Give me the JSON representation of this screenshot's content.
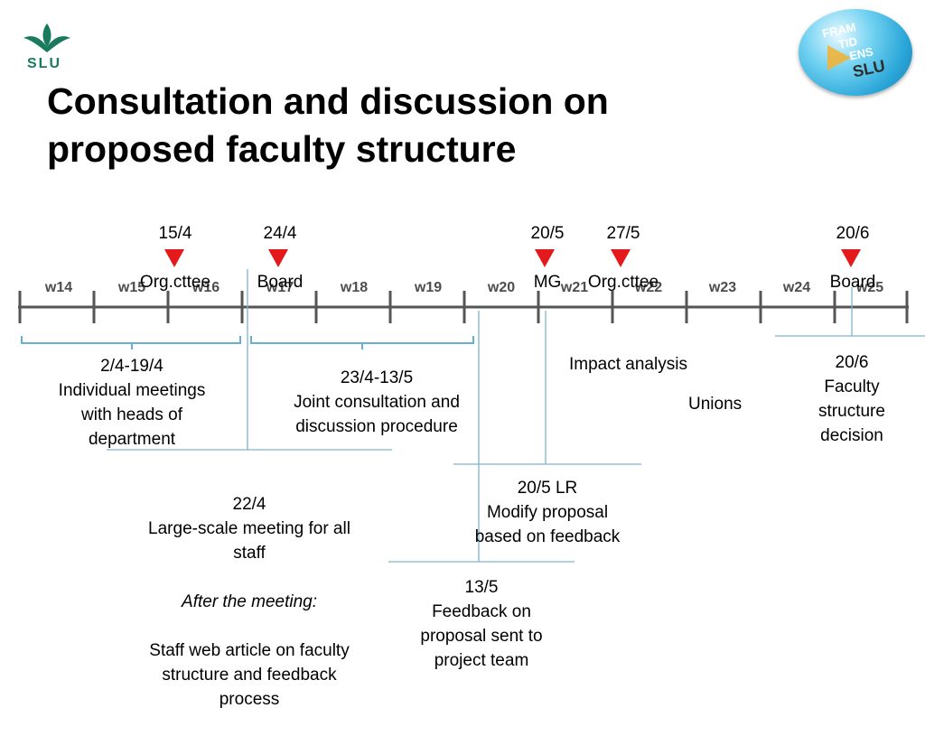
{
  "title": "Consultation and discussion on\nproposed faculty structure",
  "logo": {
    "text": "SLU",
    "color": "#1a7a5e"
  },
  "badge": {
    "lines": [
      "FRAM",
      "TID",
      "ENS",
      "SLU"
    ],
    "color": "#39b9e6"
  },
  "colors": {
    "marker": "#e3191c",
    "axis": "#555555",
    "connector": "#7fb5cf"
  },
  "weeks": [
    "w14",
    "w15",
    "w16",
    "w17",
    "w18",
    "w19",
    "w20",
    "w21",
    "w22",
    "w23",
    "w24",
    "w25"
  ],
  "events": [
    {
      "date": "15/4",
      "label": "Org.cttee"
    },
    {
      "date": "24/4",
      "label": "Board"
    },
    {
      "date": "20/5",
      "label": "MG"
    },
    {
      "date": "27/5",
      "label": "Org.cttee"
    },
    {
      "date": "20/6",
      "label": "Board"
    }
  ],
  "notes": {
    "individual": "2/4-19/4\nIndividual meetings\nwith heads of\ndepartment",
    "joint": "23/4-13/5\nJoint consultation and\ndiscussion procedure",
    "impact": "Impact analysis",
    "unions": "Unions",
    "decision": "20/6\nFaculty\nstructure\ndecision",
    "modify": "20/5 LR\nModify proposal\nbased on feedback",
    "feedback": "13/5\nFeedback on\nproposal sent to\nproject team",
    "staff_intro": "22/4\nLarge-scale meeting for all\nstaff",
    "staff_after": "After the meeting:",
    "staff_article": "Staff web article on faculty\nstructure and feedback\nprocess"
  }
}
